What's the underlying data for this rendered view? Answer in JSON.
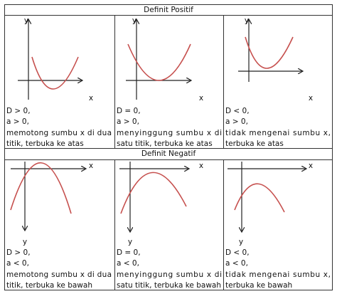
{
  "sections": [
    {
      "title": "Definit Positif",
      "cells": [
        {
          "y_label": "y",
          "x_label": "x",
          "lines": [
            "D > 0,",
            "a > 0,",
            "memotong sumbu x di dua",
            "titik, terbuka ke atas"
          ]
        },
        {
          "y_label": "y",
          "x_label": "x",
          "lines": [
            "D = 0,",
            "a > 0,",
            "menyinggung sumbu x di",
            "satu titik, terbuka ke atas"
          ]
        },
        {
          "y_label": "y",
          "x_label": "x",
          "lines": [
            "D < 0,",
            "a > 0,",
            "tidak mengenai sumbu x,",
            "terbuka ke atas"
          ]
        }
      ]
    },
    {
      "title": "Definit Negatif",
      "cells": [
        {
          "y_label": "y",
          "x_label": "x",
          "lines": [
            "D > 0,",
            "a < 0,",
            "memotong sumbu x di dua",
            "titik, terbuka ke bawah"
          ]
        },
        {
          "y_label": "y",
          "x_label": "x",
          "lines": [
            "D = 0,",
            "a < 0,",
            "menyinggung sumbu x di",
            "satu titik, terbuka ke bawah"
          ]
        },
        {
          "y_label": "y",
          "x_label": "x",
          "lines": [
            "D < 0,",
            "a < 0,",
            "tidak mengenai sumbu x,",
            "terbuka ke bawah"
          ]
        }
      ]
    }
  ]
}
